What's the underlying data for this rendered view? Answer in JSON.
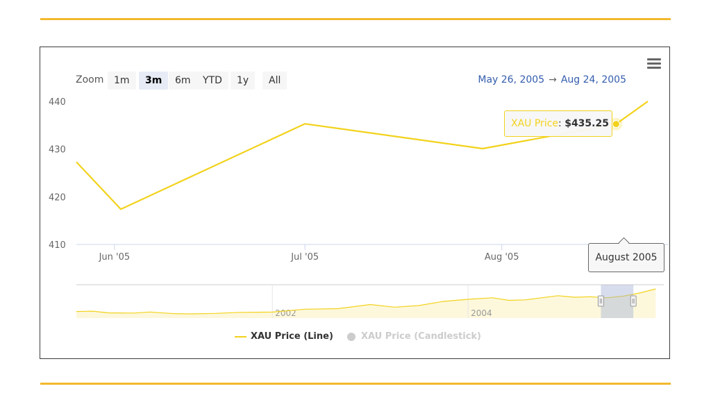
{
  "toolbar": {
    "zoom_label": "Zoom",
    "zoom_buttons": [
      "1m",
      "3m",
      "6m",
      "YTD",
      "1y",
      "All"
    ],
    "zoom_active": "3m",
    "range_from": "May 26, 2005",
    "range_arrow": "→",
    "range_to": "Aug 24, 2005",
    "menu_icon": "hamburger-menu-icon"
  },
  "tooltip": {
    "series": "XAU Price",
    "sep": ": ",
    "value": "$435.25"
  },
  "flag_label": "August 2005",
  "legend": [
    {
      "label": "XAU Price (Line)",
      "symbol": "line",
      "color": "#f2d21b"
    },
    {
      "label": "XAU Price (Candlestick)",
      "symbol": "circle",
      "color": "#cccccc"
    }
  ],
  "colors": {
    "line": "#f2d21b",
    "axis_text": "#666666",
    "range_text": "#335cad",
    "rule": "#f2b82d"
  },
  "chart_data": {
    "type": "line",
    "series": [
      {
        "name": "XAU Price",
        "points": [
          {
            "x": "2005-05-26",
            "y": 427.3
          },
          {
            "x": "2005-06-02",
            "y": 417.4
          },
          {
            "x": "2005-07-01",
            "y": 435.3
          },
          {
            "x": "2005-07-29",
            "y": 430.1
          },
          {
            "x": "2005-08-19",
            "y": 435.25
          },
          {
            "x": "2005-08-24",
            "y": 440.0
          }
        ]
      }
    ],
    "ylim": [
      410,
      440
    ],
    "yticks": [
      410,
      420,
      430,
      440
    ],
    "xlim": [
      "2005-05-26",
      "2005-08-24"
    ],
    "xticks": [
      {
        "x": "2005-06-01",
        "label": "Jun '05"
      },
      {
        "x": "2005-07-01",
        "label": "Jul '05"
      },
      {
        "x": "2005-08-01",
        "label": "Aug '05"
      }
    ],
    "highlight": {
      "x": "2005-08-19",
      "y": 435.25
    },
    "navigator": {
      "xlim": [
        "2000-01-01",
        "2005-12-31"
      ],
      "xticks": [
        {
          "x": "2002-01-01",
          "label": "2002"
        },
        {
          "x": "2004-01-01",
          "label": "2004"
        }
      ],
      "selection": [
        "2005-05-26",
        "2005-08-24"
      ],
      "series": [
        {
          "x": "2000-01-01",
          "y": 288
        },
        {
          "x": "2000-03-01",
          "y": 291
        },
        {
          "x": "2000-05-01",
          "y": 275
        },
        {
          "x": "2000-08-01",
          "y": 273
        },
        {
          "x": "2000-10-01",
          "y": 283
        },
        {
          "x": "2001-01-01",
          "y": 267
        },
        {
          "x": "2001-03-01",
          "y": 265
        },
        {
          "x": "2001-06-01",
          "y": 270
        },
        {
          "x": "2001-09-01",
          "y": 280
        },
        {
          "x": "2002-01-01",
          "y": 282
        },
        {
          "x": "2002-05-01",
          "y": 310
        },
        {
          "x": "2002-09-01",
          "y": 315
        },
        {
          "x": "2003-01-01",
          "y": 355
        },
        {
          "x": "2003-04-01",
          "y": 330
        },
        {
          "x": "2003-07-01",
          "y": 345
        },
        {
          "x": "2003-10-01",
          "y": 385
        },
        {
          "x": "2004-01-01",
          "y": 405
        },
        {
          "x": "2004-04-01",
          "y": 420
        },
        {
          "x": "2004-06-01",
          "y": 395
        },
        {
          "x": "2004-08-01",
          "y": 400
        },
        {
          "x": "2004-10-01",
          "y": 420
        },
        {
          "x": "2004-12-01",
          "y": 440
        },
        {
          "x": "2005-02-01",
          "y": 425
        },
        {
          "x": "2005-04-01",
          "y": 430
        },
        {
          "x": "2005-06-01",
          "y": 420
        },
        {
          "x": "2005-08-01",
          "y": 435
        },
        {
          "x": "2005-10-01",
          "y": 465
        },
        {
          "x": "2005-12-01",
          "y": 505
        }
      ]
    }
  }
}
